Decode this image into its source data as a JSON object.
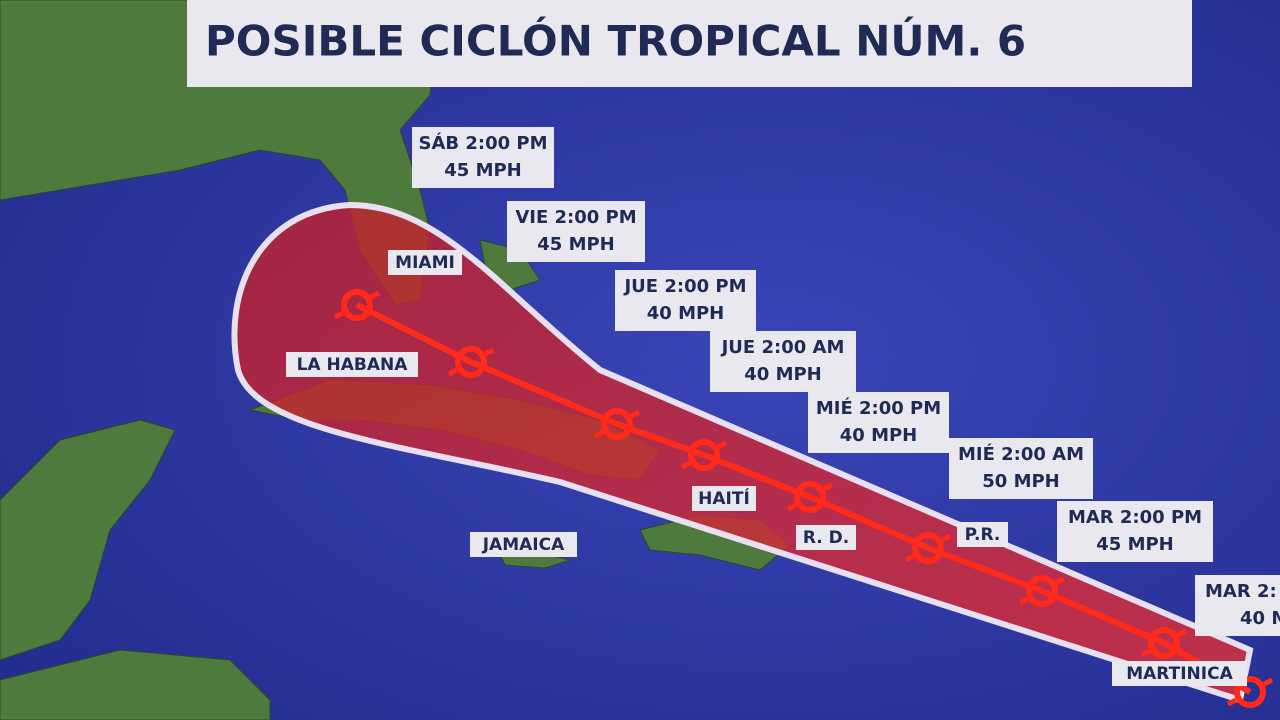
{
  "title": "POSIBLE CICLÓN TROPICAL NÚM. 6",
  "forecast_points": [
    {
      "time": "SÁB 2:00 PM",
      "wind": "45 MPH"
    },
    {
      "time": "VIE 2:00 PM",
      "wind": "45 MPH"
    },
    {
      "time": "JUE 2:00 PM",
      "wind": "40 MPH"
    },
    {
      "time": "JUE 2:00 AM",
      "wind": "40 MPH"
    },
    {
      "time": "MIÉ 2:00 PM",
      "wind": "40 MPH"
    },
    {
      "time": "MIÉ 2:00 AM",
      "wind": "50 MPH"
    },
    {
      "time": "MAR 2:00 PM",
      "wind": "45 MPH"
    },
    {
      "time": "MAR 2:",
      "wind": "40 M"
    }
  ],
  "places": [
    "MIAMI",
    "LA HABANA",
    "HAITÍ",
    "R. D.",
    "P.R.",
    "JAMAICA",
    "MARTINICA"
  ]
}
